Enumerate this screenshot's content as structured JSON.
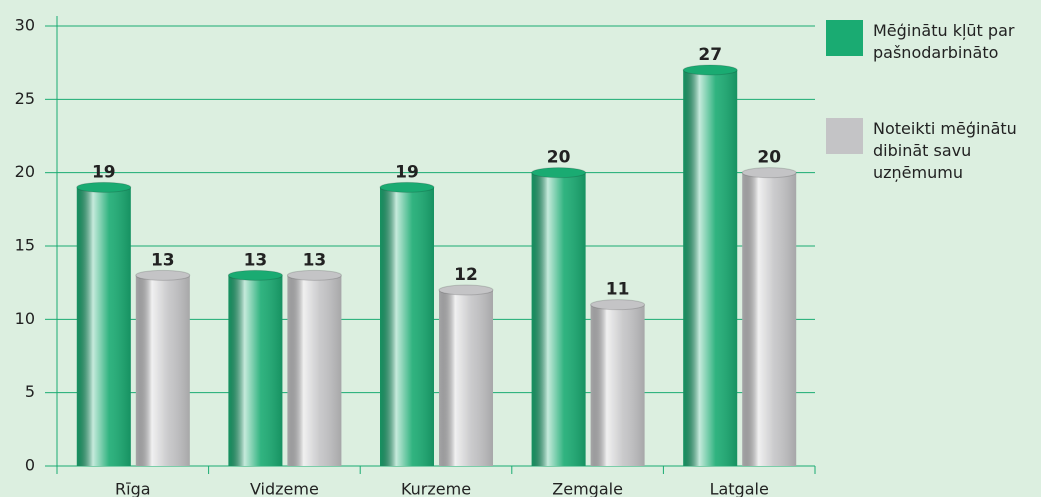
{
  "chart_data": {
    "type": "bar",
    "categories": [
      "Rīga",
      "Vidzeme",
      "Kurzeme",
      "Zemgale",
      "Latgale"
    ],
    "series": [
      {
        "name": "Mēģinātu kļūt par pašnodarbināto",
        "color": "#1aab72",
        "values": [
          19,
          13,
          19,
          20,
          27
        ]
      },
      {
        "name": "Noteikti mēģinātu dibināt savu uzņēmumu",
        "color": "#c4c4c6",
        "values": [
          13,
          13,
          12,
          11,
          20
        ]
      }
    ],
    "ylim": [
      0,
      30
    ],
    "yticks": [
      0,
      5,
      10,
      15,
      20,
      25,
      30
    ],
    "grid": true,
    "legend": "right"
  }
}
